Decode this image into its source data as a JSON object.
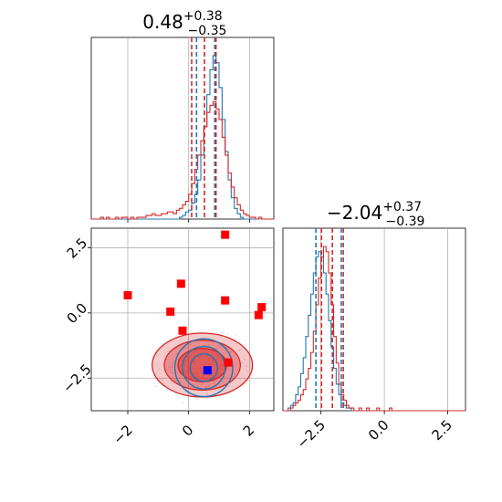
{
  "chart_data": [
    {
      "panel": "top-left",
      "type": "histogram",
      "title": {
        "value": "0.48",
        "plus": "+0.38",
        "minus": "−0.35"
      },
      "xlim": [
        -3.2,
        2.8
      ],
      "grid": true,
      "x_tick_labels_shown": false,
      "colors": {
        "series_a": "#1f77b4",
        "series_b": "#d62728"
      },
      "quantiles_a": [
        0.26,
        0.86
      ],
      "quantiles_b": [
        0.1,
        0.52,
        0.9
      ],
      "hist_a": {
        "bin_start": -3.2,
        "bin_width": 0.1,
        "counts": [
          0,
          0,
          0,
          0,
          0,
          0,
          0,
          0,
          0,
          0,
          0,
          0,
          0,
          0,
          0,
          0,
          0,
          0,
          0,
          0,
          0,
          0,
          0,
          0,
          0,
          0,
          0,
          0,
          0,
          1,
          2,
          4,
          5,
          9,
          14,
          22,
          36,
          52,
          70,
          84,
          92,
          88,
          74,
          56,
          38,
          22,
          12,
          6,
          3,
          1,
          0,
          0,
          0,
          0,
          0,
          0,
          0,
          0,
          0,
          0
        ]
      },
      "hist_b": {
        "bin_start": -3.2,
        "bin_width": 0.1,
        "counts": [
          0,
          0,
          0,
          1,
          0,
          1,
          0,
          0,
          1,
          0,
          1,
          1,
          0,
          1,
          0,
          1,
          1,
          1,
          2,
          2,
          3,
          2,
          2,
          3,
          3,
          4,
          4,
          3,
          5,
          6,
          8,
          10,
          14,
          20,
          28,
          36,
          44,
          52,
          60,
          64,
          66,
          62,
          56,
          46,
          36,
          26,
          18,
          12,
          8,
          5,
          3,
          2,
          1,
          1,
          0,
          1,
          0,
          0,
          0,
          0
        ]
      }
    },
    {
      "panel": "bottom-left",
      "type": "scatter",
      "xlim": [
        -3.2,
        2.8
      ],
      "ylim": [
        -3.75,
        3.25
      ],
      "x_tick_labels": [
        "−2",
        "0",
        "2"
      ],
      "x_ticks": [
        -2,
        0,
        2
      ],
      "y_tick_labels": [
        "−2.5",
        "0.0",
        "2.5"
      ],
      "y_ticks": [
        -2.5,
        0,
        2.5
      ],
      "grid": true,
      "colors": {
        "series_a": "#1f77b4",
        "series_b": "#d62728",
        "markers": "#ff0000",
        "truth": "#0000ff"
      },
      "red_square_markers": [
        [
          -2.0,
          0.68
        ],
        [
          -0.25,
          1.12
        ],
        [
          -0.6,
          0.05
        ],
        [
          -0.2,
          -0.68
        ],
        [
          1.2,
          3.0
        ],
        [
          1.2,
          0.48
        ],
        [
          2.4,
          0.22
        ],
        [
          2.3,
          -0.08
        ],
        [
          1.3,
          -1.9
        ]
      ],
      "blue_square_marker": [
        0.62,
        -2.2
      ],
      "contour_a_center": [
        0.5,
        -2.1
      ],
      "contour_b_center": [
        0.45,
        -2.0
      ]
    },
    {
      "panel": "bottom-right",
      "type": "histogram",
      "title": {
        "value": "−2.04",
        "plus": "+0.37",
        "minus": "−0.39"
      },
      "xlim": [
        -4.0,
        3.2
      ],
      "x_tick_labels": [
        "−2.5",
        "0.0",
        "2.5"
      ],
      "x_ticks": [
        -2.5,
        0,
        2.5
      ],
      "grid": true,
      "colors": {
        "series_a": "#1f77b4",
        "series_b": "#d62728"
      },
      "quantiles_a": [
        -2.7,
        -1.7
      ],
      "quantiles_b": [
        -2.48,
        -2.05,
        -1.62
      ],
      "hist_a": {
        "bin_start": -4.0,
        "bin_width": 0.1,
        "counts": [
          0,
          0,
          1,
          2,
          3,
          6,
          9,
          14,
          20,
          28,
          36,
          44,
          52,
          58,
          60,
          58,
          52,
          44,
          34,
          24,
          16,
          10,
          6,
          3,
          2,
          1,
          1,
          0,
          0,
          0,
          0,
          0,
          0,
          0,
          0,
          0,
          0,
          0,
          0,
          0,
          0,
          0,
          0,
          0,
          0,
          0,
          0,
          0,
          0,
          0,
          0,
          0,
          0,
          0,
          0,
          0,
          0,
          0,
          0,
          0,
          0,
          0,
          0,
          0,
          0,
          0,
          0,
          0,
          0,
          0,
          0,
          0
        ]
      },
      "hist_b": {
        "bin_start": -4.0,
        "bin_width": 0.1,
        "counts": [
          0,
          0,
          0,
          1,
          2,
          3,
          4,
          6,
          8,
          12,
          16,
          22,
          30,
          40,
          50,
          58,
          62,
          60,
          52,
          40,
          28,
          18,
          10,
          6,
          4,
          2,
          1,
          1,
          0,
          0,
          1,
          0,
          0,
          1,
          0,
          0,
          0,
          1,
          0,
          0,
          0,
          0,
          1,
          0,
          0,
          0,
          0,
          0,
          0,
          0,
          0,
          0,
          0,
          0,
          0,
          0,
          0,
          0,
          0,
          0,
          0,
          0,
          0,
          0,
          0,
          0,
          0,
          0,
          0,
          0,
          0,
          0
        ]
      }
    }
  ]
}
